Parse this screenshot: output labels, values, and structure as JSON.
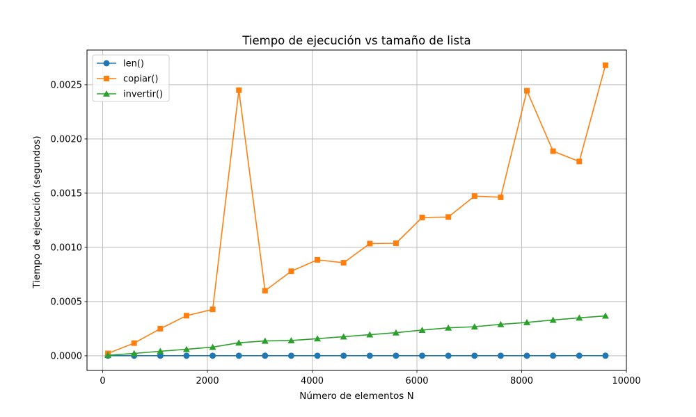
{
  "chart_data": {
    "type": "line",
    "title": "Tiempo de ejecución vs tamaño de lista",
    "xlabel": "Número de elementos N",
    "ylabel": "Tiempo de ejecución (segundos)",
    "xlim": [
      -300,
      10000
    ],
    "ylim": [
      -0.000135,
      0.00282
    ],
    "xticks": [
      0,
      2000,
      4000,
      6000,
      8000,
      10000
    ],
    "xtick_labels": [
      "0",
      "2000",
      "4000",
      "6000",
      "8000",
      "10000"
    ],
    "yticks": [
      0.0,
      0.0005,
      0.001,
      0.0015,
      0.002,
      0.0025
    ],
    "ytick_labels": [
      "0.0000",
      "0.0005",
      "0.0010",
      "0.0015",
      "0.0020",
      "0.0025"
    ],
    "grid": true,
    "legend_position": "top-left",
    "x": [
      100,
      600,
      1100,
      1600,
      2100,
      2600,
      3100,
      3600,
      4100,
      4600,
      5100,
      5600,
      6100,
      6600,
      7100,
      7600,
      8100,
      8600,
      9100,
      9600
    ],
    "series": [
      {
        "name": "len()",
        "color": "#1f77b4",
        "marker": "circle",
        "values": [
          8e-07,
          6e-07,
          1e-06,
          5e-07,
          7e-07,
          6e-07,
          9e-07,
          7e-07,
          8e-07,
          6e-07,
          7e-07,
          6e-07,
          7e-07,
          6e-07,
          8e-07,
          6e-07,
          7e-07,
          9e-07,
          1.2e-06,
          1e-06
        ]
      },
      {
        "name": "copiar()",
        "color": "#ff7f0e",
        "marker": "square",
        "values": [
          2.2e-05,
          0.000117,
          0.00025,
          0.00037,
          0.000428,
          0.00245,
          0.0006,
          0.00078,
          0.000885,
          0.000858,
          0.001035,
          0.001038,
          0.001276,
          0.00128,
          0.001473,
          0.001462,
          0.002445,
          0.001887,
          0.001792,
          0.00268
        ]
      },
      {
        "name": "invertir()",
        "color": "#2ca02c",
        "marker": "triangle",
        "values": [
          5e-06,
          2.2e-05,
          4.2e-05,
          6e-05,
          8e-05,
          0.00012,
          0.000137,
          0.000141,
          0.000158,
          0.000176,
          0.000195,
          0.000213,
          0.000237,
          0.000258,
          0.000268,
          0.00029,
          0.000308,
          0.00033,
          0.00035,
          0.000368
        ]
      }
    ]
  }
}
